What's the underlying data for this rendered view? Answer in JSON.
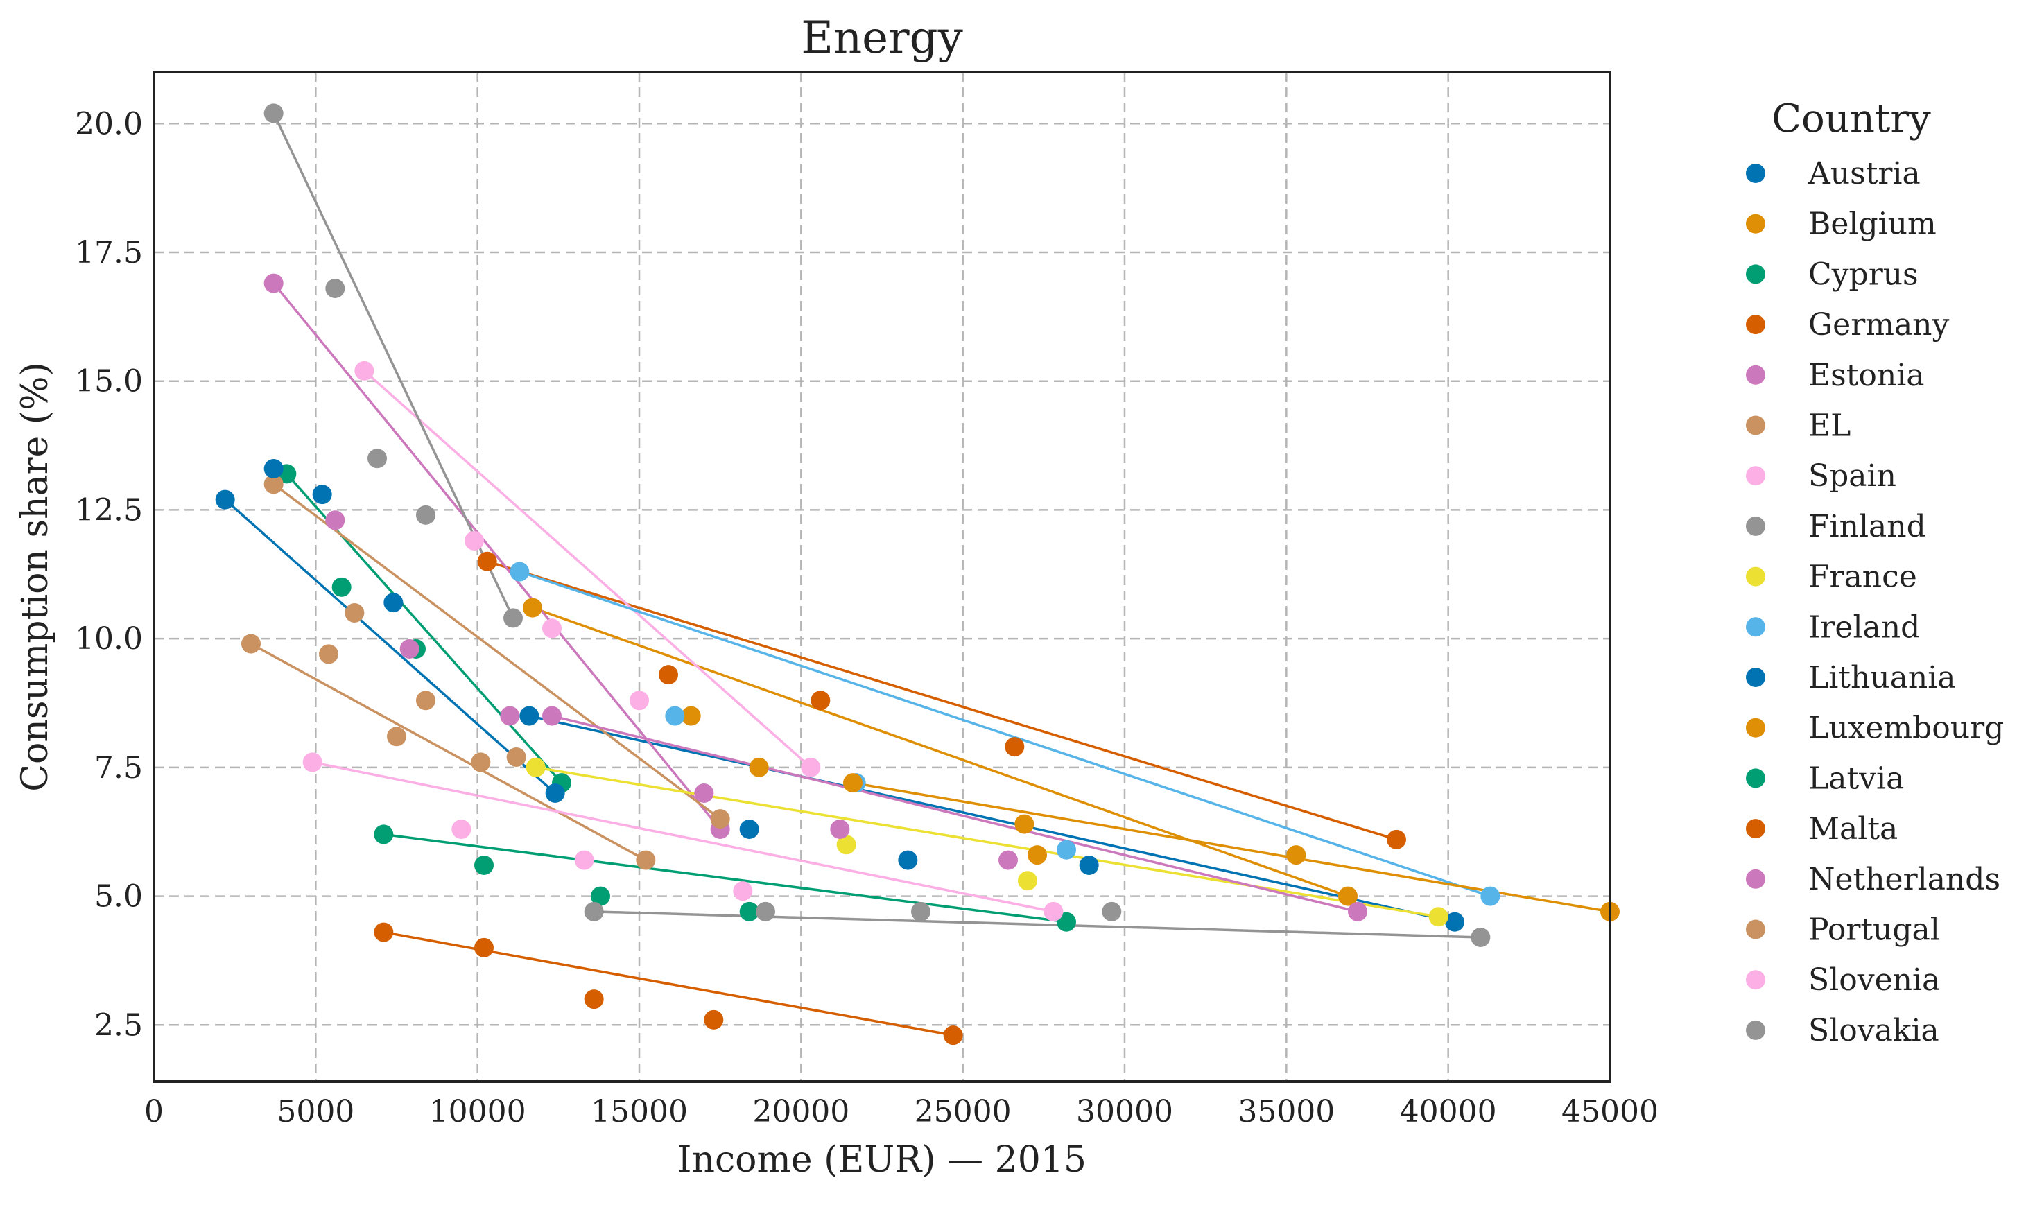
{
  "chart_data": {
    "type": "scatter",
    "title": "Energy",
    "xlabel": "Income (EUR) — 2015",
    "ylabel": "Consumption share (%)",
    "xlim": [
      0,
      45000
    ],
    "ylim": [
      1.4,
      21.0
    ],
    "xticks": [
      0,
      5000,
      10000,
      15000,
      20000,
      25000,
      30000,
      35000,
      40000,
      45000
    ],
    "xtick_labels": [
      "0",
      "5000",
      "10000",
      "15000",
      "20000",
      "25000",
      "30000",
      "35000",
      "40000",
      "45000"
    ],
    "yticks": [
      2.5,
      5.0,
      7.5,
      10.0,
      12.5,
      15.0,
      17.5,
      20.0
    ],
    "ytick_labels": [
      "2.5",
      "5.0",
      "7.5",
      "10.0",
      "12.5",
      "15.0",
      "17.5",
      "20.0"
    ],
    "grid": true,
    "legend_title": "Country",
    "legend_position": "outside-right",
    "series": [
      {
        "name": "Austria",
        "color": "#0173b2",
        "points": [
          [
            11600,
            8.5
          ],
          [
            18400,
            6.3
          ],
          [
            23300,
            5.7
          ],
          [
            28900,
            5.6
          ],
          [
            40200,
            4.5
          ]
        ]
      },
      {
        "name": "Belgium",
        "color": "#de8f05",
        "points": [
          [
            11700,
            10.6
          ],
          [
            16600,
            8.5
          ],
          [
            18700,
            7.5
          ],
          [
            26900,
            6.4
          ],
          [
            36900,
            5.0
          ]
        ]
      },
      {
        "name": "Cyprus",
        "color": "#029e73",
        "points": [
          [
            4100,
            13.2
          ],
          [
            5800,
            11.0
          ],
          [
            8100,
            9.8
          ],
          [
            12600,
            7.2
          ]
        ]
      },
      {
        "name": "Germany",
        "color": "#d55e00",
        "points": [
          [
            10300,
            11.5
          ],
          [
            15900,
            9.3
          ],
          [
            20600,
            8.8
          ],
          [
            26600,
            7.9
          ],
          [
            38400,
            6.1
          ]
        ]
      },
      {
        "name": "Estonia",
        "color": "#cc78bc",
        "points": [
          [
            3700,
            16.9
          ],
          [
            5600,
            12.3
          ],
          [
            7900,
            9.8
          ],
          [
            11000,
            8.5
          ],
          [
            17500,
            6.3
          ]
        ]
      },
      {
        "name": "EL",
        "color": "#ca9161",
        "points": [
          [
            3700,
            13.0
          ],
          [
            5400,
            9.7
          ],
          [
            6200,
            10.5
          ],
          [
            8400,
            8.8
          ],
          [
            11200,
            7.7
          ],
          [
            17500,
            6.5
          ]
        ]
      },
      {
        "name": "Spain",
        "color": "#fbafe4",
        "points": [
          [
            6500,
            15.2
          ],
          [
            9900,
            11.9
          ],
          [
            12300,
            10.2
          ],
          [
            15000,
            8.8
          ],
          [
            20300,
            7.5
          ]
        ]
      },
      {
        "name": "Finland",
        "color": "#949494",
        "points": [
          [
            3700,
            20.2
          ],
          [
            5600,
            16.8
          ],
          [
            6900,
            13.5
          ],
          [
            8400,
            12.4
          ],
          [
            11100,
            10.4
          ]
        ]
      },
      {
        "name": "France",
        "color": "#ece133",
        "points": [
          [
            11800,
            7.5
          ],
          [
            21400,
            6.0
          ],
          [
            27000,
            5.3
          ],
          [
            39700,
            4.6
          ]
        ]
      },
      {
        "name": "Ireland",
        "color": "#56b4e9",
        "points": [
          [
            11300,
            11.3
          ],
          [
            16100,
            8.5
          ],
          [
            21700,
            7.2
          ],
          [
            28200,
            5.9
          ],
          [
            41300,
            5.0
          ]
        ]
      },
      {
        "name": "Lithuania",
        "color": "#0173b2",
        "points": [
          [
            2200,
            12.7
          ],
          [
            3700,
            13.3
          ],
          [
            5200,
            12.8
          ],
          [
            7400,
            10.7
          ],
          [
            12400,
            7.0
          ]
        ]
      },
      {
        "name": "Luxembourg",
        "color": "#de8f05",
        "points": [
          [
            21600,
            7.2
          ],
          [
            27300,
            5.8
          ],
          [
            35300,
            5.8
          ],
          [
            45000,
            4.7
          ]
        ]
      },
      {
        "name": "Latvia",
        "color": "#029e73",
        "points": [
          [
            7100,
            6.2
          ],
          [
            10200,
            5.6
          ],
          [
            13800,
            5.0
          ],
          [
            18400,
            4.7
          ],
          [
            28200,
            4.5
          ]
        ]
      },
      {
        "name": "Malta",
        "color": "#d55e00",
        "points": [
          [
            7100,
            4.3
          ],
          [
            10200,
            4.0
          ],
          [
            13600,
            3.0
          ],
          [
            17300,
            2.6
          ],
          [
            24700,
            2.3
          ]
        ]
      },
      {
        "name": "Netherlands",
        "color": "#cc78bc",
        "points": [
          [
            12300,
            8.5
          ],
          [
            17000,
            7.0
          ],
          [
            21200,
            6.3
          ],
          [
            26400,
            5.7
          ],
          [
            37200,
            4.7
          ]
        ]
      },
      {
        "name": "Portugal",
        "color": "#ca9161",
        "points": [
          [
            3000,
            9.9
          ],
          [
            7500,
            8.1
          ],
          [
            10100,
            7.6
          ],
          [
            15200,
            5.7
          ]
        ]
      },
      {
        "name": "Slovenia",
        "color": "#fbafe4",
        "points": [
          [
            4900,
            7.6
          ],
          [
            9500,
            6.3
          ],
          [
            13300,
            5.7
          ],
          [
            18200,
            5.1
          ],
          [
            27800,
            4.7
          ]
        ]
      },
      {
        "name": "Slovakia",
        "color": "#949494",
        "points": [
          [
            13600,
            4.7
          ],
          [
            18900,
            4.7
          ],
          [
            23700,
            4.7
          ],
          [
            29600,
            4.7
          ],
          [
            41000,
            4.2
          ]
        ]
      }
    ]
  }
}
